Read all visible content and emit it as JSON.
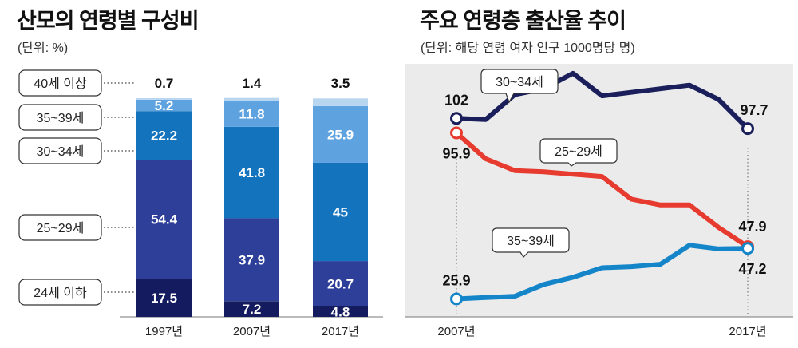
{
  "left": {
    "title": "산모의 연령별 구성비",
    "unit": "(단위: %)"
  },
  "right": {
    "title": "주요 연령층 출산율 추이",
    "unit": "(단위: 해당 연령 여자 인구 1000명당 명)"
  },
  "colors": {
    "age_24_under": "#141b5e",
    "age_25_29": "#2e3f99",
    "age_30_34": "#1373bd",
    "age_35_39": "#5ea3df",
    "age_40_over": "#b9d6f1",
    "line_30_34": "#1a1f5c",
    "line_25_29": "#e63b2e",
    "line_35_39": "#1585c9",
    "right_bg": "#ebebeb"
  },
  "chart_data": [
    {
      "type": "bar",
      "stacked": true,
      "title": "산모의 연령별 구성비",
      "unit": "(단위: %)",
      "categories": [
        "1997년",
        "2007년",
        "2017년"
      ],
      "series": [
        {
          "name": "24세 이하",
          "values": [
            17.5,
            7.2,
            4.8
          ],
          "labels": [
            "17.5",
            "7.2",
            "4.8"
          ],
          "color_key": "age_24_under"
        },
        {
          "name": "25~29세",
          "values": [
            54.4,
            37.9,
            20.7
          ],
          "labels": [
            "54.4",
            "37.9",
            "20.7"
          ],
          "color_key": "age_25_29"
        },
        {
          "name": "30~34세",
          "values": [
            22.2,
            41.8,
            45
          ],
          "labels": [
            "22.2",
            "41.8",
            "45"
          ],
          "color_key": "age_30_34"
        },
        {
          "name": "35~39세",
          "values": [
            5.2,
            11.8,
            25.9
          ],
          "labels": [
            "5.2",
            "11.8",
            "25.9"
          ],
          "color_key": "age_35_39"
        },
        {
          "name": "40세 이상",
          "values": [
            0.7,
            1.4,
            3.5
          ],
          "labels": [
            "0.7",
            "1.4",
            "3.5"
          ],
          "color_key": "age_40_over"
        }
      ],
      "ylim": [
        0,
        100
      ]
    },
    {
      "type": "line",
      "title": "주요 연령층 출산율 추이",
      "unit": "(단위: 해당 연령 여자 인구 1000명당 명)",
      "x_start_label": "2007년",
      "x_end_label": "2017년",
      "x": [
        2007,
        2008,
        2009,
        2010,
        2011,
        2012,
        2013,
        2014,
        2015,
        2016,
        2017
      ],
      "series": [
        {
          "name": "30~34세",
          "values": [
            102.0,
            101.5,
            112.0,
            114.5,
            121.0,
            111.5,
            113.0,
            114.5,
            116.0,
            110.0,
            97.7
          ],
          "start_label": "102",
          "end_label": "97.7",
          "color_key": "line_30_34"
        },
        {
          "name": "25~29세",
          "values": [
            95.9,
            85.0,
            80.0,
            79.5,
            78.5,
            77.5,
            68.0,
            65.5,
            65.5,
            56.0,
            47.9
          ],
          "start_label": "95.9",
          "end_label": "47.9",
          "color_key": "line_25_29"
        },
        {
          "name": "35~39세",
          "values": [
            25.9,
            26.5,
            27.0,
            32.0,
            35.0,
            39.0,
            39.5,
            40.5,
            48.5,
            47.0,
            47.2
          ],
          "start_label": "25.9",
          "end_label": "47.2",
          "color_key": "line_35_39"
        }
      ],
      "ylim": [
        20,
        125
      ]
    }
  ]
}
